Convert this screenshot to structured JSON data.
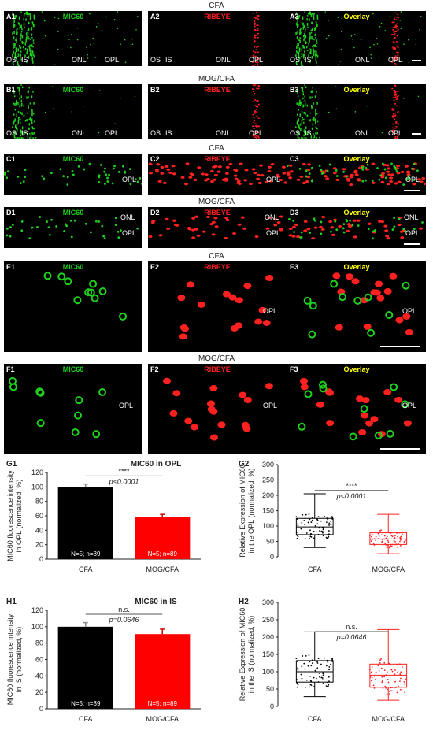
{
  "rows": [
    {
      "id": "A",
      "title": "CFA"
    },
    {
      "id": "B",
      "title": "MOG/CFA"
    },
    {
      "id": "C",
      "title": "CFA"
    },
    {
      "id": "D",
      "title": "MOG/CFA"
    },
    {
      "id": "E",
      "title": "CFA"
    },
    {
      "id": "F",
      "title": "MOG/CFA"
    }
  ],
  "channels": {
    "mic60": "MIC60",
    "ribeye": "RIBEYE",
    "overlay": "Overlay"
  },
  "colors": {
    "mic60": "#1fd11f",
    "ribeye": "#ff2020",
    "overlay": "#ffff00"
  },
  "panel_tags": {
    "A": [
      "A1",
      "A2",
      "A3"
    ],
    "B": [
      "B1",
      "B2",
      "B3"
    ],
    "C": [
      "C1",
      "C2",
      "C3"
    ],
    "D": [
      "D1",
      "D2",
      "D3"
    ],
    "E": [
      "E1",
      "E2",
      "E3"
    ],
    "F": [
      "F1",
      "F2",
      "F3"
    ]
  },
  "layers": {
    "os": "OS",
    "is": "IS",
    "onl": "ONL",
    "opl": "OPL"
  },
  "charts": [
    {
      "tag": "G1",
      "title": "MIC60 in OPL",
      "ylabel": "MIC60 fluorescence intensity in OPL (normalized, %)",
      "ylim": [
        0,
        120
      ],
      "yticks": [
        0,
        20,
        40,
        60,
        80,
        100,
        120
      ],
      "categories": [
        "CFA",
        "MOG/CFA"
      ],
      "values": [
        100,
        58
      ],
      "errors": [
        4,
        4
      ],
      "bar_colors": [
        "#000000",
        "#ff0000"
      ],
      "n_labels": [
        "N=5; n=89",
        "N=5; n=89"
      ],
      "sig": "****",
      "pval": "p<0.0001"
    },
    {
      "tag": "G2",
      "title": "",
      "ylabel": "Relative Expression of MIC60 in the OPL (normalized, %)",
      "ylim": [
        0,
        300
      ],
      "yticks": [
        0,
        50,
        100,
        150,
        200,
        250,
        300
      ],
      "categories": [
        "CFA",
        "MOG/CFA"
      ],
      "boxes": [
        {
          "min": 30,
          "q1": 72,
          "median": 97,
          "q3": 125,
          "max": 205
        },
        {
          "min": 10,
          "q1": 40,
          "median": 58,
          "q3": 78,
          "max": 138
        }
      ],
      "box_colors": [
        "#000000",
        "#ff2020"
      ],
      "sig": "****",
      "pval": "p<0.0001"
    },
    {
      "tag": "H1",
      "title": "MIC60 in IS",
      "ylabel": "MIC60 fluorescence intensity in IS (normalized, %)",
      "ylim": [
        0,
        120
      ],
      "yticks": [
        0,
        20,
        40,
        60,
        80,
        100,
        120
      ],
      "categories": [
        "CFA",
        "MOG/CFA"
      ],
      "values": [
        100,
        91
      ],
      "errors": [
        5,
        6
      ],
      "bar_colors": [
        "#000000",
        "#ff0000"
      ],
      "n_labels": [
        "N=5; n=89",
        "N=5; n=89"
      ],
      "sig": "n.s.",
      "pval": "p=0.0646"
    },
    {
      "tag": "H2",
      "title": "",
      "ylabel": "Relative Expression of MIC60 in the IS (normalized, %)",
      "ylim": [
        0,
        300
      ],
      "yticks": [
        0,
        50,
        100,
        150,
        200,
        250,
        300
      ],
      "categories": [
        "CFA",
        "MOG/CFA"
      ],
      "boxes": [
        {
          "min": 28,
          "q1": 70,
          "median": 100,
          "q3": 132,
          "max": 215
        },
        {
          "min": 18,
          "q1": 55,
          "median": 90,
          "q3": 122,
          "max": 222
        }
      ],
      "box_colors": [
        "#000000",
        "#ff2020"
      ],
      "sig": "n.s.",
      "pval": "p=0.0646"
    }
  ]
}
